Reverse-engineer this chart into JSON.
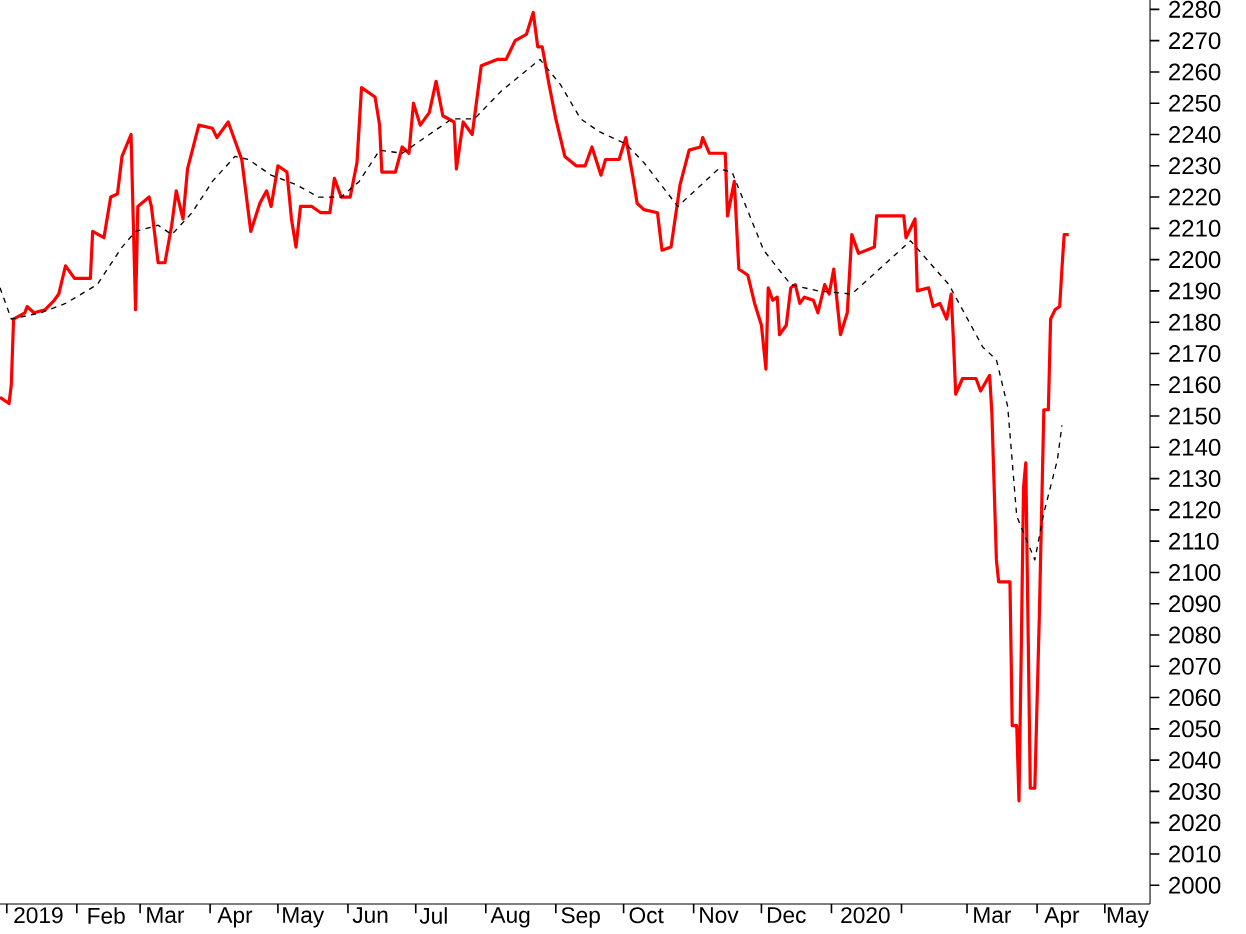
{
  "chart_data": {
    "type": "line",
    "xlim": [
      "2018-12-29",
      "2020-05-21"
    ],
    "ylim": [
      1994,
      2283
    ],
    "xticks": [
      {
        "value": "2019-01-01",
        "label": null
      },
      {
        "value": "2019-02-01",
        "label": null
      },
      {
        "value": "2019-03-01",
        "label": null
      },
      {
        "value": "2019-04-01",
        "label": null
      },
      {
        "value": "2019-05-01",
        "label": null
      },
      {
        "value": "2019-06-01",
        "label": null
      },
      {
        "value": "2019-07-01",
        "label": null
      },
      {
        "value": "2019-08-01",
        "label": null
      },
      {
        "value": "2019-09-01",
        "label": null
      },
      {
        "value": "2019-10-01",
        "label": null
      },
      {
        "value": "2019-11-01",
        "label": null
      },
      {
        "value": "2019-12-01",
        "label": null
      },
      {
        "value": "2020-01-01",
        "label": null
      },
      {
        "value": "2020-02-01",
        "label": null
      },
      {
        "value": "2020-03-01",
        "label": null
      },
      {
        "value": "2020-04-01",
        "label": null
      },
      {
        "value": "2020-05-01",
        "label": null
      },
      {
        "value": "2019-01-15",
        "label": "2019"
      },
      {
        "value": "2019-02-14",
        "label": "Feb"
      },
      {
        "value": "2019-03-12",
        "label": "Mar"
      },
      {
        "value": "2019-04-12",
        "label": "Apr"
      },
      {
        "value": "2019-05-12",
        "label": "May"
      },
      {
        "value": "2019-06-11",
        "label": "Jun"
      },
      {
        "value": "2019-07-09",
        "label": "Jul"
      },
      {
        "value": "2019-08-12",
        "label": "Aug"
      },
      {
        "value": "2019-09-12",
        "label": "Sep"
      },
      {
        "value": "2019-10-11",
        "label": "Oct"
      },
      {
        "value": "2019-11-12",
        "label": "Nov"
      },
      {
        "value": "2019-12-12",
        "label": "Dec"
      },
      {
        "value": "2020-01-16",
        "label": "2020"
      },
      {
        "value": "2020-03-12",
        "label": "Mar"
      },
      {
        "value": "2020-04-12",
        "label": "Apr"
      },
      {
        "value": "2020-05-11",
        "label": "May"
      }
    ],
    "yticks": [
      2000,
      2010,
      2020,
      2030,
      2040,
      2050,
      2060,
      2070,
      2080,
      2090,
      2100,
      2110,
      2120,
      2130,
      2140,
      2150,
      2160,
      2170,
      2180,
      2190,
      2200,
      2210,
      2220,
      2230,
      2240,
      2250,
      2260,
      2270,
      2280
    ],
    "grid": false,
    "marker": "none",
    "series": [
      {
        "color": "#ff0000",
        "line_style": "solid",
        "x": [
          "2018-12-29",
          "2019-01-02",
          "2019-01-03",
          "2019-01-04",
          "2019-01-09",
          "2019-01-10",
          "2019-01-13",
          "2019-01-18",
          "2019-01-22",
          "2019-01-24",
          "2019-01-27",
          "2019-01-31",
          "2019-02-07",
          "2019-02-08",
          "2019-02-13",
          "2019-02-16",
          "2019-02-19",
          "2019-02-21",
          "2019-02-25",
          "2019-02-27",
          "2019-02-28",
          "2019-03-05",
          "2019-03-06",
          "2019-03-09",
          "2019-03-12",
          "2019-03-15",
          "2019-03-17",
          "2019-03-20",
          "2019-03-22",
          "2019-03-27",
          "2019-04-02",
          "2019-04-04",
          "2019-04-09",
          "2019-04-12",
          "2019-04-15",
          "2019-04-19",
          "2019-04-23",
          "2019-04-26",
          "2019-04-28",
          "2019-05-01",
          "2019-05-05",
          "2019-05-07",
          "2019-05-09",
          "2019-05-11",
          "2019-05-16",
          "2019-05-20",
          "2019-05-24",
          "2019-05-26",
          "2019-05-29",
          "2019-06-02",
          "2019-06-05",
          "2019-06-07",
          "2019-06-13",
          "2019-06-15",
          "2019-06-16",
          "2019-06-22",
          "2019-06-25",
          "2019-06-28",
          "2019-06-30",
          "2019-07-03",
          "2019-07-07",
          "2019-07-10",
          "2019-07-13",
          "2019-07-18",
          "2019-07-19",
          "2019-07-22",
          "2019-07-26",
          "2019-07-30",
          "2019-08-06",
          "2019-08-10",
          "2019-08-14",
          "2019-08-19",
          "2019-08-22",
          "2019-08-24",
          "2019-08-26",
          "2019-08-29",
          "2019-09-01",
          "2019-09-05",
          "2019-09-10",
          "2019-09-14",
          "2019-09-17",
          "2019-09-21",
          "2019-09-23",
          "2019-09-29",
          "2019-10-02",
          "2019-10-05",
          "2019-10-07",
          "2019-10-10",
          "2019-10-16",
          "2019-10-18",
          "2019-10-22",
          "2019-10-26",
          "2019-10-30",
          "2019-11-04",
          "2019-11-05",
          "2019-11-08",
          "2019-11-15",
          "2019-11-16",
          "2019-11-19",
          "2019-11-21",
          "2019-11-25",
          "2019-11-28",
          "2019-12-01",
          "2019-12-03",
          "2019-12-04",
          "2019-12-06",
          "2019-12-08",
          "2019-12-09",
          "2019-12-12",
          "2019-12-14",
          "2019-12-16",
          "2019-12-18",
          "2019-12-20",
          "2019-12-24",
          "2019-12-26",
          "2019-12-29",
          "2019-12-31",
          "2020-01-02",
          "2020-01-05",
          "2020-01-08",
          "2020-01-10",
          "2020-01-13",
          "2020-01-20",
          "2020-01-21",
          "2020-02-02",
          "2020-02-03",
          "2020-02-07",
          "2020-02-08",
          "2020-02-13",
          "2020-02-15",
          "2020-02-18",
          "2020-02-21",
          "2020-02-23",
          "2020-02-24",
          "2020-02-25",
          "2020-02-28",
          "2020-03-05",
          "2020-03-07",
          "2020-03-11",
          "2020-03-12",
          "2020-03-14",
          "2020-03-15",
          "2020-03-20",
          "2020-03-21",
          "2020-03-23",
          "2020-03-24",
          "2020-03-25",
          "2020-03-26",
          "2020-03-27",
          "2020-03-28",
          "2020-03-29",
          "2020-03-31",
          "2020-04-02",
          "2020-04-03",
          "2020-04-04",
          "2020-04-06",
          "2020-04-07",
          "2020-04-09",
          "2020-04-11",
          "2020-04-12",
          "2020-04-13",
          "2020-04-15"
        ],
        "values": [
          2156,
          2154,
          2160,
          2181,
          2183,
          2185,
          2183,
          2184,
          2187,
          2189,
          2198,
          2194,
          2194,
          2209,
          2207,
          2220,
          2221,
          2233,
          2240,
          2184,
          2217,
          2220,
          2217,
          2199,
          2199,
          2211,
          2222,
          2213,
          2229,
          2243,
          2242,
          2239,
          2244,
          2238,
          2232,
          2209,
          2218,
          2222,
          2217,
          2230,
          2228,
          2213,
          2204,
          2217,
          2217,
          2215,
          2215,
          2226,
          2220,
          2220,
          2231,
          2255,
          2252,
          2243,
          2228,
          2228,
          2236,
          2234,
          2250,
          2243,
          2247,
          2257,
          2246,
          2244,
          2229,
          2244,
          2240,
          2262,
          2264,
          2264,
          2270,
          2272,
          2279,
          2268,
          2268,
          2256,
          2245,
          2233,
          2230,
          2230,
          2236,
          2227,
          2232,
          2232,
          2239,
          2227,
          2218,
          2216,
          2215,
          2203,
          2204,
          2224,
          2235,
          2236,
          2239,
          2234,
          2234,
          2214,
          2225,
          2197,
          2195,
          2186,
          2179,
          2165,
          2191,
          2187,
          2188,
          2176,
          2179,
          2191,
          2192,
          2186,
          2188,
          2187,
          2183,
          2192,
          2189,
          2197,
          2176,
          2183,
          2208,
          2202,
          2204,
          2214,
          2214,
          2207,
          2213,
          2190,
          2191,
          2185,
          2186,
          2181,
          2189,
          2174,
          2157,
          2162,
          2162,
          2158,
          2163,
          2151,
          2104,
          2097,
          2097,
          2051,
          2051,
          2027,
          2075,
          2127,
          2135,
          2083,
          2031,
          2031,
          2086,
          2119,
          2152,
          2152,
          2181,
          2184,
          2185,
          2197,
          2208,
          2208
        ]
      },
      {
        "color": "#000000",
        "line_style": "dashed",
        "x": [
          "2018-12-29",
          "2019-01-03",
          "2019-01-16",
          "2019-01-27",
          "2019-02-10",
          "2019-02-21",
          "2019-02-27",
          "2019-03-09",
          "2019-03-15",
          "2019-03-24",
          "2019-04-02",
          "2019-04-12",
          "2019-04-18",
          "2019-04-28",
          "2019-05-09",
          "2019-05-19",
          "2019-05-29",
          "2019-06-06",
          "2019-06-15",
          "2019-06-25",
          "2019-07-07",
          "2019-07-17",
          "2019-07-27",
          "2019-08-08",
          "2019-08-25",
          "2019-09-03",
          "2019-09-12",
          "2019-09-20",
          "2019-10-02",
          "2019-10-10",
          "2019-10-25",
          "2019-11-12",
          "2019-11-18",
          "2019-12-02",
          "2019-12-14",
          "2019-12-26",
          "2020-01-10",
          "2020-02-05",
          "2020-02-22",
          "2020-03-08",
          "2020-03-14",
          "2020-03-19",
          "2020-03-23",
          "2020-03-31",
          "2020-04-04",
          "2020-04-10",
          "2020-04-12"
        ],
        "values": [
          2191,
          2181,
          2183,
          2186,
          2192,
          2204,
          2209,
          2211,
          2208,
          2215,
          2225,
          2233,
          2232,
          2227,
          2224,
          2220,
          2220,
          2225,
          2235,
          2234,
          2240,
          2245,
          2245,
          2254,
          2264,
          2256,
          2245,
          2241,
          2237,
          2231,
          2217,
          2229,
          2228,
          2203,
          2192,
          2190,
          2189,
          2206,
          2192,
          2172,
          2168,
          2153,
          2118,
          2104,
          2119,
          2136,
          2147
        ]
      }
    ]
  }
}
